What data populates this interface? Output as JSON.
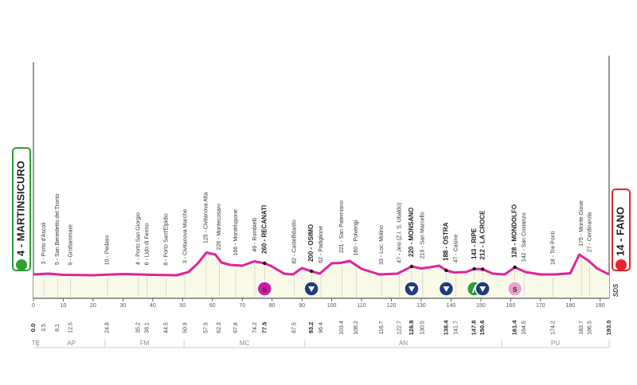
{
  "chart_data": {
    "type": "area",
    "xlim": [
      0,
      193
    ],
    "x_ticks": [
      0,
      10,
      20,
      30,
      40,
      50,
      60,
      70,
      80,
      90,
      100,
      110,
      120,
      130,
      140,
      150,
      160,
      170,
      180,
      190
    ],
    "profile": [
      [
        0,
        20
      ],
      [
        5,
        22
      ],
      [
        10,
        19
      ],
      [
        20,
        18
      ],
      [
        30,
        21
      ],
      [
        40,
        19
      ],
      [
        48,
        18
      ],
      [
        52,
        26
      ],
      [
        55,
        47
      ],
      [
        58,
        75
      ],
      [
        61,
        70
      ],
      [
        63,
        50
      ],
      [
        66,
        44
      ],
      [
        70,
        42
      ],
      [
        74,
        53
      ],
      [
        77.5,
        48
      ],
      [
        80,
        40
      ],
      [
        84,
        22
      ],
      [
        87,
        20
      ],
      [
        90,
        36
      ],
      [
        93.2,
        28
      ],
      [
        96,
        22
      ],
      [
        100,
        48
      ],
      [
        103,
        49
      ],
      [
        106,
        54
      ],
      [
        110,
        34
      ],
      [
        116,
        20
      ],
      [
        122,
        22
      ],
      [
        126.8,
        40
      ],
      [
        130,
        35
      ],
      [
        133,
        38
      ],
      [
        136,
        42
      ],
      [
        138.4,
        30
      ],
      [
        141,
        25
      ],
      [
        145,
        26
      ],
      [
        147.8,
        34
      ],
      [
        150.6,
        33
      ],
      [
        154,
        22
      ],
      [
        158,
        20
      ],
      [
        161.4,
        38
      ],
      [
        165,
        26
      ],
      [
        170,
        20
      ],
      [
        175,
        20
      ],
      [
        180,
        23
      ],
      [
        183,
        70
      ],
      [
        186,
        55
      ],
      [
        189,
        35
      ],
      [
        193,
        20
      ]
    ],
    "points": [
      {
        "km": 0.0,
        "label": "4 - MARTINSICURO"
      },
      {
        "km": 3.5,
        "label": "3 - Porto d'Ascoli"
      },
      {
        "km": 8.1,
        "label": "5 - San Benedetto del Tronto"
      },
      {
        "km": 12.5,
        "label": "9 - Grottammare"
      },
      {
        "km": 24.8,
        "label": "10 - Pedaso"
      },
      {
        "km": 35.2,
        "label": "4 - Porto San Giorgio"
      },
      {
        "km": 38.1,
        "label": "6 - Lido di Fermo"
      },
      {
        "km": 44.5,
        "label": "8 - Porto Sant'Elpidio"
      },
      {
        "km": 50.9,
        "label": "3 - Civitanova Marche"
      },
      {
        "km": 57.9,
        "label": "125 - Civitanova Alta"
      },
      {
        "km": 62.3,
        "label": "226 - Montecosaro"
      },
      {
        "km": 67.8,
        "label": "166 - Montelupone"
      },
      {
        "km": 74.2,
        "label": "49 - Rombielli"
      },
      {
        "km": 77.5,
        "label": "260 - RECANATI",
        "bold": true,
        "marker": "sprint"
      },
      {
        "km": 87.5,
        "label": "82 - Castelfidardo"
      },
      {
        "km": 93.2,
        "label": "200 - OSIMO",
        "bold": true,
        "marker": "climb"
      },
      {
        "km": 96.4,
        "label": "62 - Padiglione"
      },
      {
        "km": 103.4,
        "label": "221 - San Paterniano"
      },
      {
        "km": 108.2,
        "label": "160 - Polverigi"
      },
      {
        "km": 116.7,
        "label": "33 - Loc. Molino"
      },
      {
        "km": 122.7,
        "label": "47 - Jesi (Z.I. S. Ubaldo)"
      },
      {
        "km": 126.8,
        "label": "220 - MONSANO",
        "bold": true,
        "marker": "climb"
      },
      {
        "km": 130.5,
        "label": "219 - San Marcello"
      },
      {
        "km": 138.4,
        "label": "188 - OSTRA",
        "bold": true,
        "marker": "climb"
      },
      {
        "km": 141.7,
        "label": "47 - Casine"
      },
      {
        "km": 147.8,
        "label": "143 - RIPE",
        "bold": true,
        "marker": "feed"
      },
      {
        "km": 150.6,
        "label": "212 - LA CROCE",
        "bold": true,
        "marker": "climb"
      },
      {
        "km": 161.4,
        "label": "128 - MONDOLFO",
        "bold": true,
        "marker": "sprint2"
      },
      {
        "km": 164.5,
        "label": "142 - San Costanzo"
      },
      {
        "km": 174.2,
        "label": "18 - Tre Ponti"
      },
      {
        "km": 183.7,
        "label": "175 - Monte Giove"
      },
      {
        "km": 186.5,
        "label": "27 - Cerdinarola"
      },
      {
        "km": 193.0,
        "label": "14 - FANO"
      }
    ],
    "distance_labels": [
      "0.0",
      "3.5",
      "8.1",
      "12.5",
      "24.8",
      "35.2",
      "38.1",
      "44.5",
      "50.9",
      "57.9",
      "62.3",
      "67.8",
      "74.2",
      "77.5",
      "87.5",
      "93.2",
      "96.4",
      "103.4",
      "108.2",
      "116.7",
      "122.7",
      "126.8",
      "130.5",
      "138.4",
      "141.7",
      "147.8",
      "150.6",
      "161.4",
      "164.5",
      "174.2",
      "183.7",
      "186.5",
      "193.0"
    ],
    "bold_distances": [
      "0.0",
      "77.5",
      "93.2",
      "126.8",
      "138.4",
      "147.8",
      "150.6",
      "161.4",
      "193.0"
    ],
    "regions": [
      {
        "label": "TE",
        "from": 0,
        "to": 1.5
      },
      {
        "label": "AP",
        "from": 1.5,
        "to": 24
      },
      {
        "label": "FM",
        "from": 24,
        "to": 50.5
      },
      {
        "label": "MC",
        "from": 50.5,
        "to": 91
      },
      {
        "label": "AN",
        "from": 91,
        "to": 157
      },
      {
        "label": "PU",
        "from": 157,
        "to": 193
      }
    ],
    "start_label": "4 - MARTINSICURO",
    "finish_label": "14 - FANO",
    "colors": {
      "profile": "#e2229b",
      "fill": "#fafae8",
      "start": "#2e9e35",
      "finish": "#e3262e",
      "sprint": "#c81fa0",
      "sprint2": "#e8a2c8",
      "climb": "#1e3d7a",
      "feed": "#2e9e35"
    },
    "brand": "SDS"
  }
}
